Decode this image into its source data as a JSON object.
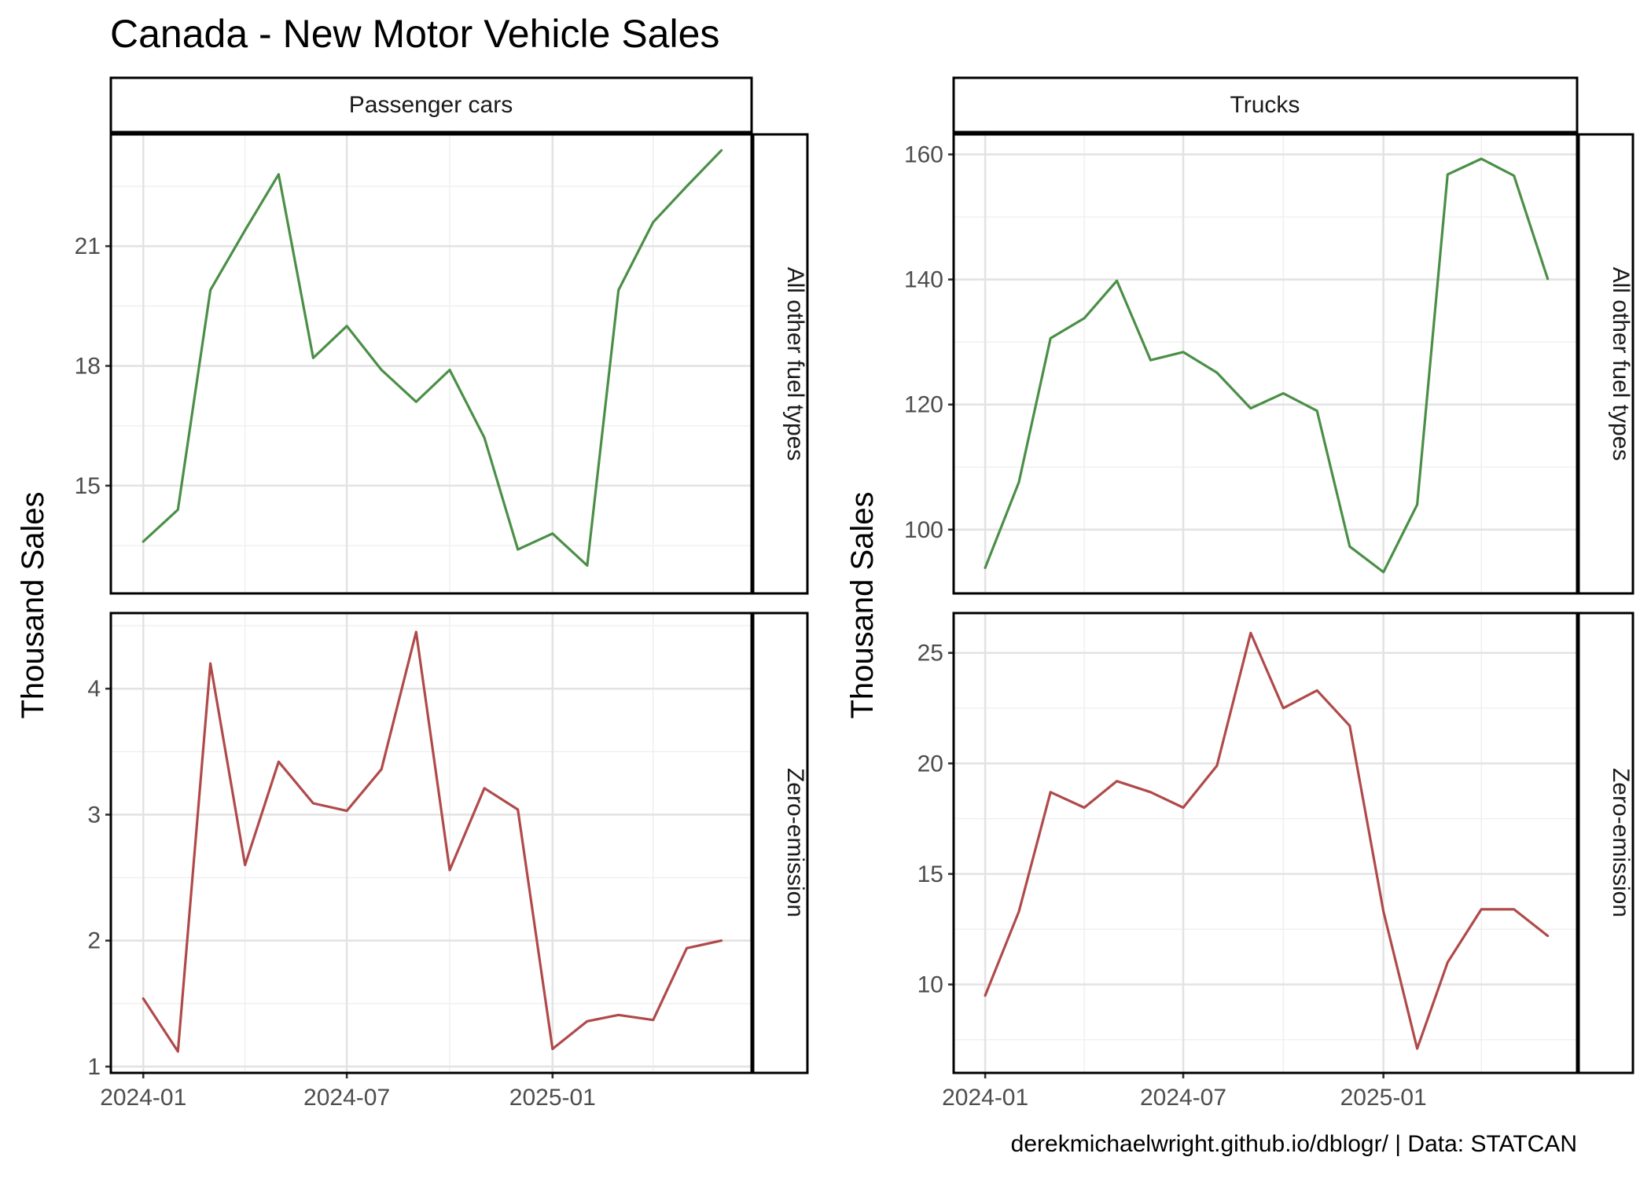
{
  "title": "Canada - New Motor Vehicle Sales",
  "caption": "derekmichaelwright.github.io/dblogr/ | Data: STATCAN",
  "colors": {
    "other_fuel": "#4b8f47",
    "zero_emission": "#b04a4a"
  },
  "chart_data": [
    {
      "type": "line",
      "vehicle_type": "Passenger cars",
      "fuel_type": "All other fuel types",
      "ylabel": "Thousand Sales",
      "ylim": [
        12.3,
        23.8
      ],
      "yticks": [
        15,
        18,
        21
      ],
      "xlim": [
        "2023-12-03",
        "2025-06-28"
      ],
      "xticks": [
        "2024-01",
        "2024-07",
        "2025-01"
      ],
      "color": "#4b8f47",
      "x": [
        "2024-01",
        "2024-02",
        "2024-03",
        "2024-04",
        "2024-05",
        "2024-06",
        "2024-07",
        "2024-08",
        "2024-09",
        "2024-10",
        "2024-11",
        "2024-12",
        "2025-01",
        "2025-02",
        "2025-03",
        "2025-04",
        "2025-05",
        "2025-06"
      ],
      "values": [
        13.6,
        14.4,
        19.9,
        21.4,
        22.8,
        18.2,
        19.0,
        17.9,
        17.1,
        17.9,
        16.2,
        13.4,
        13.8,
        13.0,
        19.9,
        21.6,
        22.5,
        23.4
      ]
    },
    {
      "type": "line",
      "vehicle_type": "Trucks",
      "fuel_type": "All other fuel types",
      "ylabel": "Thousand Sales",
      "ylim": [
        89.8,
        163.2
      ],
      "yticks": [
        100,
        120,
        140,
        160
      ],
      "xlim": [
        "2023-12-03",
        "2025-06-28"
      ],
      "xticks": [
        "2024-01",
        "2024-07",
        "2025-01"
      ],
      "color": "#4b8f47",
      "x": [
        "2024-01",
        "2024-02",
        "2024-03",
        "2024-04",
        "2024-05",
        "2024-06",
        "2024-07",
        "2024-08",
        "2024-09",
        "2024-10",
        "2024-11",
        "2024-12",
        "2025-01",
        "2025-02",
        "2025-03",
        "2025-04",
        "2025-05",
        "2025-06"
      ],
      "values": [
        93.9,
        107.6,
        130.6,
        133.8,
        139.8,
        127.1,
        128.4,
        125.1,
        119.4,
        121.8,
        119.0,
        97.3,
        93.2,
        104.0,
        156.8,
        159.3,
        156.6,
        140.1
      ]
    },
    {
      "type": "line",
      "vehicle_type": "Passenger cars",
      "fuel_type": "Zero-emission",
      "ylabel": "Thousand Sales",
      "ylim": [
        0.95,
        4.6
      ],
      "yticks": [
        1,
        2,
        3,
        4
      ],
      "xlim": [
        "2023-12-03",
        "2025-06-28"
      ],
      "xticks": [
        "2024-01",
        "2024-07",
        "2025-01"
      ],
      "color": "#b04a4a",
      "x": [
        "2024-01",
        "2024-02",
        "2024-03",
        "2024-04",
        "2024-05",
        "2024-06",
        "2024-07",
        "2024-08",
        "2024-09",
        "2024-10",
        "2024-11",
        "2024-12",
        "2025-01",
        "2025-02",
        "2025-03",
        "2025-04",
        "2025-05",
        "2025-06"
      ],
      "values": [
        1.54,
        1.12,
        4.2,
        2.6,
        3.42,
        3.09,
        3.03,
        3.36,
        4.45,
        2.56,
        3.21,
        3.04,
        1.14,
        1.36,
        1.41,
        1.37,
        1.94,
        2.0
      ]
    },
    {
      "type": "line",
      "vehicle_type": "Trucks",
      "fuel_type": "Zero-emission",
      "ylabel": "Thousand Sales",
      "ylim": [
        6.0,
        26.8
      ],
      "yticks": [
        10,
        15,
        20,
        25
      ],
      "xlim": [
        "2023-12-03",
        "2025-06-28"
      ],
      "xticks": [
        "2024-01",
        "2024-07",
        "2025-01"
      ],
      "color": "#b04a4a",
      "x": [
        "2024-01",
        "2024-02",
        "2024-03",
        "2024-04",
        "2024-05",
        "2024-06",
        "2024-07",
        "2024-08",
        "2024-09",
        "2024-10",
        "2024-11",
        "2024-12",
        "2025-01",
        "2025-02",
        "2025-03",
        "2025-04",
        "2025-05",
        "2025-06"
      ],
      "values": [
        9.5,
        13.3,
        18.7,
        18.0,
        19.2,
        18.7,
        18.0,
        19.9,
        25.9,
        22.5,
        23.3,
        21.7,
        13.3,
        7.1,
        11.0,
        13.4,
        13.4,
        12.2
      ]
    }
  ]
}
